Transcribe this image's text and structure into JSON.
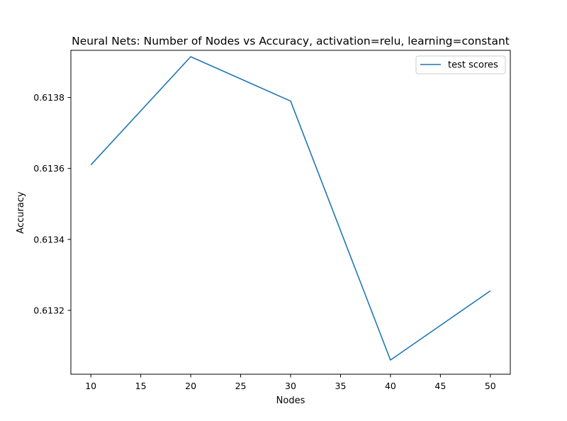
{
  "chart_data": {
    "type": "line",
    "title": "Neural Nets: Number of Nodes vs Accuracy, activation=relu, learning=constant",
    "xlabel": "Nodes",
    "ylabel": "Accuracy",
    "x": [
      10,
      20,
      30,
      40,
      50
    ],
    "series": [
      {
        "name": "test scores",
        "color": "#1f77b4",
        "values": [
          0.61361,
          0.613915,
          0.61379,
          0.61306,
          0.613255
        ]
      }
    ],
    "xlim": [
      8,
      52
    ],
    "ylim": [
      0.61302,
      0.613933
    ],
    "xticks": [
      10,
      15,
      20,
      25,
      30,
      35,
      40,
      45,
      50
    ],
    "yticks": [
      0.6132,
      0.6134,
      0.6136,
      0.6138
    ],
    "ytick_labels": [
      "0.6132",
      "0.6134",
      "0.6136",
      "0.6138"
    ],
    "grid": false,
    "legend_position": "upper right"
  }
}
